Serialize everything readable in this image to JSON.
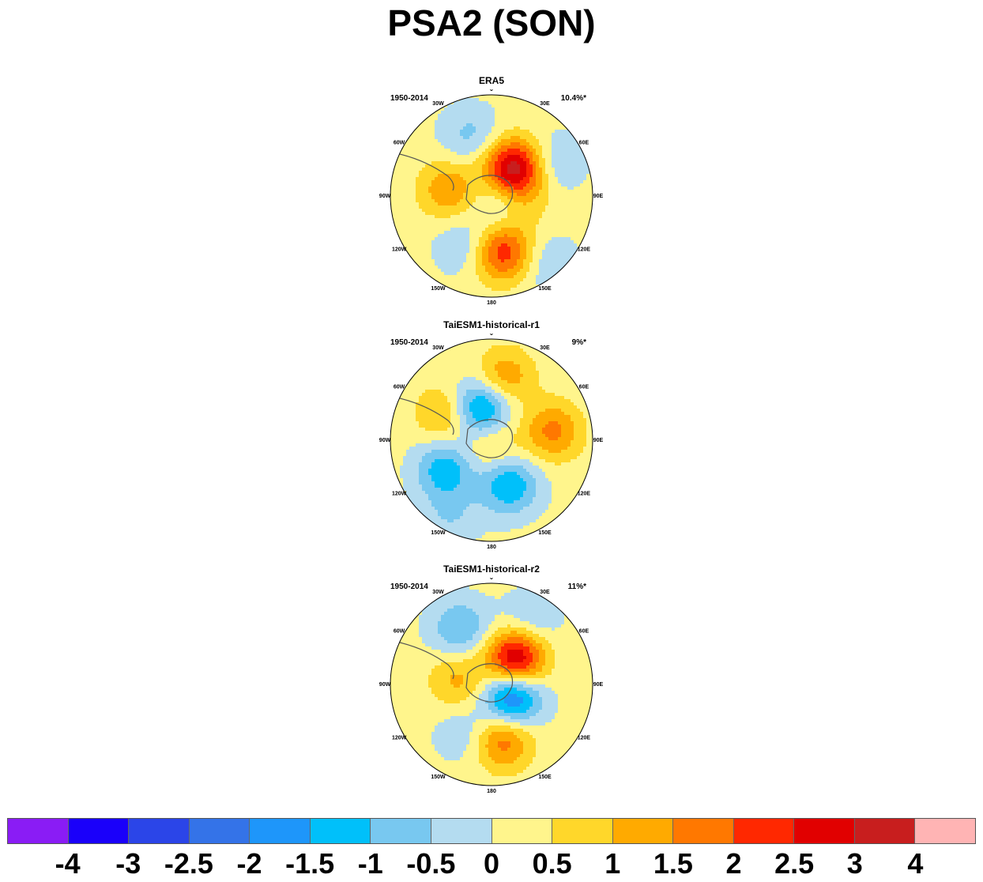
{
  "title": "PSA2 (SON)",
  "panels": [
    {
      "title": "ERA5",
      "years": "1950-2014",
      "percent": "10.4%*",
      "blobs": [
        {
          "lon": 10,
          "r": 0.55,
          "sign": 1,
          "amp": 2.2
        },
        {
          "lon": 80,
          "r": 0.25,
          "sign": 1,
          "amp": 1.4
        },
        {
          "lon": 75,
          "r": 0.15,
          "sign": -1,
          "amp": 1.6
        },
        {
          "lon": 145,
          "r": 0.35,
          "sign": 1,
          "amp": 3.2
        },
        {
          "lon": 260,
          "r": 0.45,
          "sign": 1,
          "amp": 1.3
        },
        {
          "lon": 120,
          "r": 0.7,
          "sign": -1,
          "amp": 0.7
        },
        {
          "lon": 200,
          "r": 0.65,
          "sign": -1,
          "amp": 0.8
        },
        {
          "lon": 330,
          "r": 0.55,
          "sign": -1,
          "amp": 0.7
        },
        {
          "lon": 40,
          "r": 0.85,
          "sign": -1,
          "amp": 0.6
        }
      ]
    },
    {
      "title": "TaiESM1-historical-r1",
      "years": "1950-2014",
      "percent": "9%*",
      "blobs": [
        {
          "lon": 20,
          "r": 0.45,
          "sign": -1,
          "amp": 1.7
        },
        {
          "lon": 300,
          "r": 0.55,
          "sign": -1,
          "amp": 1.5
        },
        {
          "lon": 200,
          "r": 0.35,
          "sign": -1,
          "amp": 2.1
        },
        {
          "lon": 100,
          "r": 0.6,
          "sign": 1,
          "amp": 1.5
        },
        {
          "lon": 170,
          "r": 0.65,
          "sign": 1,
          "amp": 1.3
        },
        {
          "lon": 240,
          "r": 0.55,
          "sign": 1,
          "amp": 1.1
        },
        {
          "lon": 0,
          "r": 0.05,
          "sign": 1,
          "amp": 0.8
        },
        {
          "lon": 330,
          "r": 0.85,
          "sign": -1,
          "amp": 0.6
        }
      ]
    },
    {
      "title": "TaiESM1-historical-r2",
      "years": "1950-2014",
      "percent": "11%*",
      "blobs": [
        {
          "lon": 10,
          "r": 0.55,
          "sign": 1,
          "amp": 1.7
        },
        {
          "lon": 60,
          "r": 0.22,
          "sign": -1,
          "amp": 2.5
        },
        {
          "lon": 140,
          "r": 0.35,
          "sign": 1,
          "amp": 3.1
        },
        {
          "lon": 260,
          "r": 0.35,
          "sign": 1,
          "amp": 1.0
        },
        {
          "lon": 210,
          "r": 0.65,
          "sign": -1,
          "amp": 1.2
        },
        {
          "lon": 150,
          "r": 0.75,
          "sign": -1,
          "amp": 0.7
        },
        {
          "lon": 330,
          "r": 0.55,
          "sign": -1,
          "amp": 0.6
        }
      ]
    }
  ],
  "lon_labels": [
    "0",
    "30E",
    "60E",
    "90E",
    "120E",
    "150E",
    "180",
    "150W",
    "120W",
    "90W",
    "60W",
    "30W"
  ],
  "colorbar": {
    "colors": [
      "#8a1cf5",
      "#1a00fa",
      "#2b45e8",
      "#3473e8",
      "#1e96fa",
      "#00c0fa",
      "#78c8f0",
      "#b4dcf0",
      "#fff58c",
      "#ffd72a",
      "#ffaa00",
      "#ff7800",
      "#ff2800",
      "#e10000",
      "#c81e1e",
      "#ffb4b4"
    ],
    "labels": [
      "-4",
      "-3",
      "-2.5",
      "-2",
      "-1.5",
      "-1",
      "-0.5",
      "0",
      "0.5",
      "1",
      "1.5",
      "2",
      "2.5",
      "3",
      "4"
    ]
  }
}
